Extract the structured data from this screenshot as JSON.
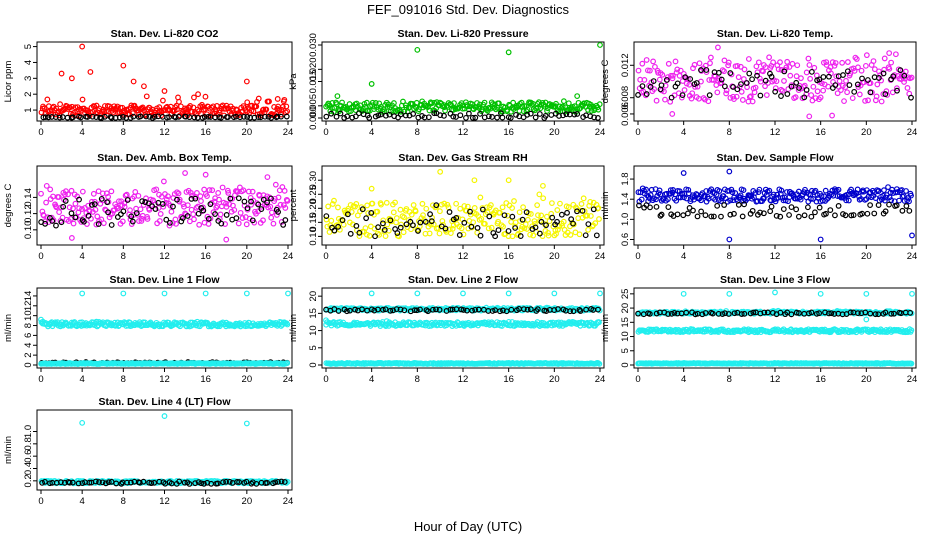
{
  "title": "FEF_091016  Std. Dev. Diagnostics",
  "xlabel": "Hour of Day (UTC)",
  "x_ticks": [
    0,
    4,
    8,
    12,
    16,
    20,
    24
  ],
  "chart_data": [
    {
      "type": "scatter",
      "title": "Stan. Dev. Li-820 CO2",
      "ylabel": "Licor ppm",
      "xlim": [
        0,
        24
      ],
      "ylim": [
        0.5,
        5.1
      ],
      "y_ticks": [
        "1",
        "2",
        "3",
        "4",
        "5"
      ],
      "y_tick_values": [
        1,
        2,
        3,
        4,
        5
      ],
      "color": "#ff0000",
      "series": [
        {
          "color": "#ff0000",
          "band": [
            0.65,
            1.3
          ],
          "spread": 1.0
        },
        {
          "color": "#000000",
          "band": [
            0.5,
            0.6
          ],
          "spread": 0.02
        }
      ],
      "outliers": [
        [
          4,
          5.0
        ],
        [
          2,
          3.3
        ],
        [
          3,
          3.0
        ],
        [
          4.8,
          3.4
        ],
        [
          8,
          3.8
        ],
        [
          9,
          2.8
        ],
        [
          10,
          2.5
        ],
        [
          12,
          2.2
        ],
        [
          20,
          2.8
        ],
        [
          23,
          1.7
        ]
      ]
    },
    {
      "type": "scatter",
      "title": "Stan. Dev. Li-820 Pressure",
      "ylabel": "kPa",
      "xlim": [
        0,
        24
      ],
      "ylim": [
        0,
        0.03
      ],
      "y_ticks": [
        "0.000",
        "0.005",
        "0.015",
        "0.020",
        "0.030"
      ],
      "y_tick_values": [
        0.0,
        0.005,
        0.015,
        0.02,
        0.03
      ],
      "color": "#00c000",
      "series": [
        {
          "color": "#00c000",
          "band": [
            0.0025,
            0.0065
          ],
          "spread": 0.001
        },
        {
          "color": "#000000",
          "band": [
            0.0,
            0.002
          ],
          "spread": 0.0
        }
      ],
      "outliers": [
        [
          8,
          0.028
        ],
        [
          16,
          0.027
        ],
        [
          24,
          0.03
        ],
        [
          4,
          0.014
        ],
        [
          1,
          0.009
        ],
        [
          22,
          0.009
        ]
      ]
    },
    {
      "type": "scatter",
      "title": "Stan. Dev. Li-820 Temp.",
      "ylabel": "degrees C",
      "xlim": [
        0,
        24
      ],
      "ylim": [
        0.0055,
        0.0145
      ],
      "y_ticks": [
        "0.006",
        "0.008",
        "0.012"
      ],
      "y_tick_values": [
        0.006,
        0.008,
        0.012
      ],
      "color": "#ee22ee",
      "series": [
        {
          "color": "#ee22ee",
          "band": [
            0.0075,
            0.0125
          ],
          "spread": 0.001
        },
        {
          "color": "#000000",
          "band": [
            0.008,
            0.0115
          ],
          "spread": 0.0005
        }
      ],
      "outliers": [
        [
          7,
          0.0142
        ],
        [
          3,
          0.006
        ],
        [
          15,
          0.0057
        ],
        [
          17,
          0.0058
        ],
        [
          22,
          0.0135
        ]
      ]
    },
    {
      "type": "scatter",
      "title": "Stan. Dev. Amb. Box Temp.",
      "ylabel": "degrees C",
      "xlim": [
        0,
        24
      ],
      "ylim": [
        0.085,
        0.175
      ],
      "y_ticks": [
        "0.10",
        "0.12",
        "0.14"
      ],
      "y_tick_values": [
        0.1,
        0.12,
        0.14
      ],
      "color": "#ee22ee",
      "series": [
        {
          "color": "#ee22ee",
          "band": [
            0.105,
            0.15
          ],
          "spread": 0.01
        },
        {
          "color": "#000000",
          "band": [
            0.105,
            0.14
          ],
          "spread": 0.005
        }
      ],
      "outliers": [
        [
          14,
          0.17
        ],
        [
          16,
          0.168
        ],
        [
          22,
          0.165
        ],
        [
          3,
          0.09
        ],
        [
          18,
          0.088
        ]
      ]
    },
    {
      "type": "scatter",
      "title": "Stan. Dev. Gas Stream RH",
      "ylabel": "percent",
      "xlim": [
        0,
        24
      ],
      "ylim": [
        0.08,
        0.34
      ],
      "y_ticks": [
        "0.10",
        "0.15",
        "0.20",
        "0.25",
        "0.30"
      ],
      "y_tick_values": [
        0.1,
        0.15,
        0.2,
        0.25,
        0.3
      ],
      "color": "#f5f500",
      "series": [
        {
          "color": "#f5f500",
          "band": [
            0.1,
            0.22
          ],
          "spread": 0.03
        },
        {
          "color": "#000000",
          "band": [
            0.1,
            0.2
          ],
          "spread": 0.03
        }
      ],
      "outliers": [
        [
          10,
          0.33
        ],
        [
          13,
          0.3
        ],
        [
          16,
          0.3
        ],
        [
          4,
          0.27
        ],
        [
          19,
          0.28
        ]
      ]
    },
    {
      "type": "scatter",
      "title": "Stan. Dev. Sample Flow",
      "ylabel": "ml/min",
      "xlim": [
        0,
        24
      ],
      "ylim": [
        0.55,
        2.0
      ],
      "y_ticks": [
        "0.6",
        "1.0",
        "1.4",
        "1.8"
      ],
      "y_tick_values": [
        0.6,
        1.0,
        1.4,
        1.8
      ],
      "color": "#0000cc",
      "series": [
        {
          "color": "#0000cc",
          "band": [
            1.35,
            1.6
          ],
          "spread": 0.05
        },
        {
          "color": "#000000",
          "band": [
            1.05,
            1.3
          ],
          "spread": 0.05
        }
      ],
      "outliers": [
        [
          8,
          0.6
        ],
        [
          16,
          0.6
        ],
        [
          24,
          0.68
        ],
        [
          4,
          1.92
        ],
        [
          8,
          1.95
        ]
      ]
    },
    {
      "type": "scatter",
      "title": "Stan. Dev. Line 1 Flow",
      "ylabel": "ml/min",
      "xlim": [
        0,
        24
      ],
      "ylim": [
        0,
        15
      ],
      "y_ticks": [
        "0",
        "2",
        "4",
        "6",
        "8",
        "10",
        "12",
        "14"
      ],
      "y_tick_values": [
        0,
        2,
        4,
        6,
        8,
        10,
        12,
        14
      ],
      "color": "#22eeee",
      "series": [
        {
          "color": "#22eeee",
          "band": [
            7.8,
            8.7
          ],
          "spread": 0.2
        },
        {
          "color": "#000000",
          "band": [
            0.3,
            0.6
          ],
          "spread": 0.0
        },
        {
          "color": "#22eeee",
          "band": [
            0.2,
            0.4
          ],
          "spread": 0.0
        }
      ],
      "outliers": [
        [
          4,
          14.5
        ],
        [
          8,
          14.5
        ],
        [
          12,
          14.5
        ],
        [
          16,
          14.5
        ],
        [
          20,
          14.5
        ],
        [
          24,
          14.5
        ],
        [
          0,
          9.2
        ]
      ]
    },
    {
      "type": "scatter",
      "title": "Stan. Dev. Line 2 Flow",
      "ylabel": "ml/min",
      "xlim": [
        0,
        24
      ],
      "ylim": [
        0,
        21.5
      ],
      "y_ticks": [
        "0",
        "5",
        "10",
        "15",
        "20"
      ],
      "y_tick_values": [
        0,
        5,
        10,
        15,
        20
      ],
      "color": "#22eeee",
      "series": [
        {
          "color": "#22eeee",
          "band": [
            15.8,
            16.6
          ],
          "spread": 0.3
        },
        {
          "color": "#000000",
          "band": [
            15.6,
            16.3
          ],
          "spread": 0.0
        },
        {
          "color": "#22eeee",
          "band": [
            11.3,
            12.5
          ],
          "spread": 0.3
        },
        {
          "color": "#22eeee",
          "band": [
            0.3,
            0.6
          ],
          "spread": 0.0
        }
      ],
      "outliers": [
        [
          4,
          20.8
        ],
        [
          8,
          20.8
        ],
        [
          12,
          20.8
        ],
        [
          16,
          20.8
        ],
        [
          20,
          20.8
        ],
        [
          24,
          20.8
        ],
        [
          0,
          13.0
        ]
      ]
    },
    {
      "type": "scatter",
      "title": "Stan. Dev. Line 3 Flow",
      "ylabel": "ml/min",
      "xlim": [
        0,
        24
      ],
      "ylim": [
        0,
        26
      ],
      "y_ticks": [
        "0",
        "5",
        "10",
        "15",
        "20",
        "25"
      ],
      "y_tick_values": [
        0,
        5,
        10,
        15,
        20,
        25
      ],
      "color": "#22eeee",
      "series": [
        {
          "color": "#22eeee",
          "band": [
            18.0,
            18.8
          ],
          "spread": 0.3
        },
        {
          "color": "#000000",
          "band": [
            17.8,
            18.5
          ],
          "spread": 0.0
        },
        {
          "color": "#22eeee",
          "band": [
            11.5,
            12.6
          ],
          "spread": 0.3
        },
        {
          "color": "#22eeee",
          "band": [
            0.4,
            0.7
          ],
          "spread": 0.0
        }
      ],
      "outliers": [
        [
          4,
          25.0
        ],
        [
          8,
          25.0
        ],
        [
          12,
          25.5
        ],
        [
          16,
          25.0
        ],
        [
          20,
          25.0
        ],
        [
          24,
          25.0
        ],
        [
          20,
          16.0
        ]
      ]
    },
    {
      "type": "scatter",
      "title": "Stan. Dev. Line 4 (LT) Flow",
      "ylabel": "ml/min",
      "xlim": [
        0,
        24
      ],
      "ylim": [
        0.1,
        1.3
      ],
      "y_ticks": [
        "0.2",
        "0.4",
        "0.6",
        "0.8",
        "1.0"
      ],
      "y_tick_values": [
        0.2,
        0.4,
        0.6,
        0.8,
        1.0
      ],
      "color": "#22eeee",
      "series": [
        {
          "color": "#22eeee",
          "band": [
            0.16,
            0.2
          ],
          "spread": 0.0
        },
        {
          "color": "#000000",
          "band": [
            0.15,
            0.19
          ],
          "spread": 0.0
        }
      ],
      "outliers": [
        [
          4,
          1.14
        ],
        [
          12,
          1.25
        ],
        [
          20,
          1.13
        ]
      ]
    }
  ]
}
